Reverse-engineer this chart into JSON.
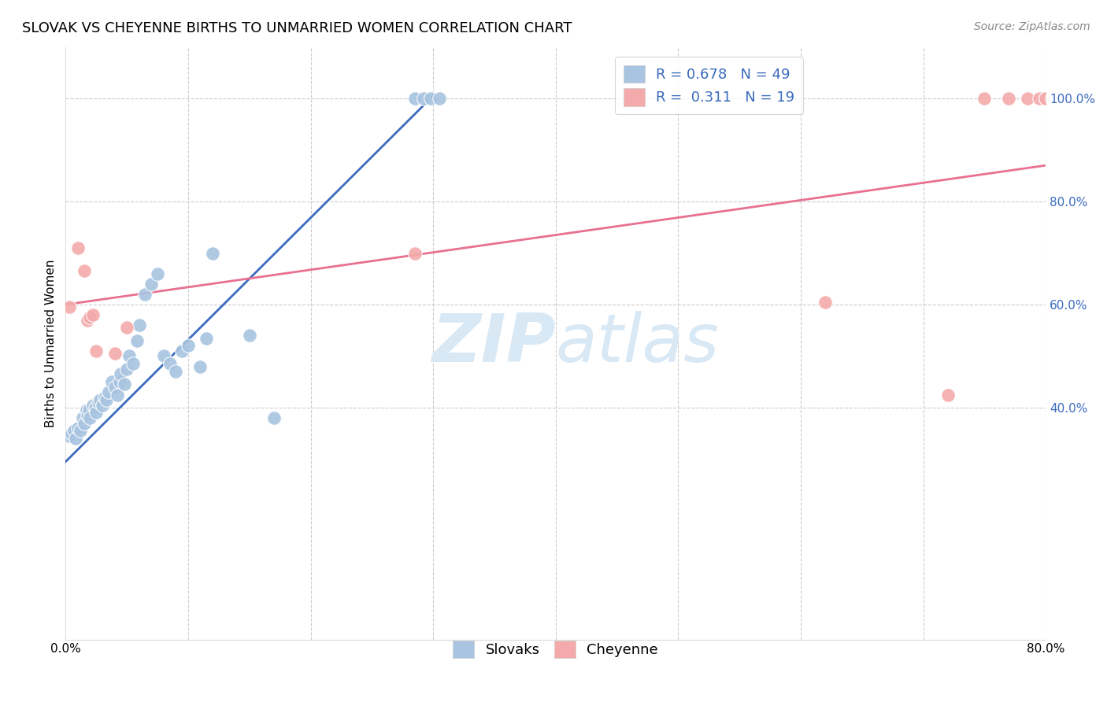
{
  "title": "SLOVAK VS CHEYENNE BIRTHS TO UNMARRIED WOMEN CORRELATION CHART",
  "source": "Source: ZipAtlas.com",
  "ylabel": "Births to Unmarried Women",
  "xlim": [
    0.0,
    0.8
  ],
  "ylim": [
    -0.05,
    1.1
  ],
  "yticks": [
    0.4,
    0.6,
    0.8,
    1.0
  ],
  "ytick_labels": [
    "40.0%",
    "60.0%",
    "80.0%",
    "100.0%"
  ],
  "xticks": [
    0.0,
    0.1,
    0.2,
    0.3,
    0.4,
    0.5,
    0.6,
    0.7,
    0.8
  ],
  "xtick_labels": [
    "0.0%",
    "",
    "",
    "",
    "",
    "",
    "",
    "",
    "80.0%"
  ],
  "blue_R": 0.678,
  "blue_N": 49,
  "pink_R": 0.311,
  "pink_N": 19,
  "blue_color": "#A8C4E0",
  "pink_color": "#F4AAAA",
  "blue_line_color": "#3B6BBE",
  "pink_line_color": "#E87090",
  "blue_x": [
    0.003,
    0.005,
    0.007,
    0.008,
    0.01,
    0.012,
    0.014,
    0.015,
    0.017,
    0.018,
    0.019,
    0.02,
    0.022,
    0.024,
    0.025,
    0.027,
    0.028,
    0.03,
    0.032,
    0.033,
    0.035,
    0.038,
    0.04,
    0.042,
    0.044,
    0.045,
    0.048,
    0.05,
    0.052,
    0.055,
    0.058,
    0.06,
    0.065,
    0.07,
    0.075,
    0.08,
    0.085,
    0.09,
    0.095,
    0.1,
    0.11,
    0.115,
    0.12,
    0.15,
    0.17,
    0.285,
    0.292,
    0.298,
    0.305
  ],
  "blue_y": [
    0.345,
    0.35,
    0.355,
    0.34,
    0.36,
    0.355,
    0.38,
    0.37,
    0.395,
    0.385,
    0.395,
    0.38,
    0.405,
    0.4,
    0.39,
    0.41,
    0.415,
    0.405,
    0.42,
    0.415,
    0.43,
    0.45,
    0.44,
    0.425,
    0.45,
    0.465,
    0.445,
    0.475,
    0.5,
    0.485,
    0.53,
    0.56,
    0.62,
    0.64,
    0.66,
    0.5,
    0.485,
    0.47,
    0.51,
    0.52,
    0.48,
    0.535,
    0.7,
    0.54,
    0.38,
    1.0,
    1.0,
    1.0,
    1.0
  ],
  "pink_x": [
    0.003,
    0.01,
    0.015,
    0.018,
    0.02,
    0.022,
    0.025,
    0.04,
    0.05,
    0.285,
    0.62,
    0.72,
    0.75,
    0.77,
    0.785,
    0.795,
    0.8,
    0.8,
    0.805
  ],
  "pink_y": [
    0.595,
    0.71,
    0.665,
    0.57,
    0.575,
    0.58,
    0.51,
    0.505,
    0.555,
    0.7,
    0.605,
    0.425,
    1.0,
    1.0,
    1.0,
    1.0,
    1.0,
    1.0,
    1.0
  ],
  "blue_trend_x": [
    0.0,
    0.3
  ],
  "blue_trend_y": [
    0.295,
    1.005
  ],
  "pink_trend_x": [
    0.0,
    0.8
  ],
  "pink_trend_y": [
    0.6,
    0.87
  ],
  "watermark_zip": "ZIP",
  "watermark_atlas": "atlas",
  "watermark_color": "#D8E8F5",
  "watermark_fontsize": 62,
  "title_fontsize": 13,
  "legend_fontsize": 13,
  "tick_fontsize": 11,
  "ylabel_fontsize": 11,
  "source_fontsize": 10,
  "background_color": "#FFFFFF",
  "grid_color": "#CCCCCC"
}
